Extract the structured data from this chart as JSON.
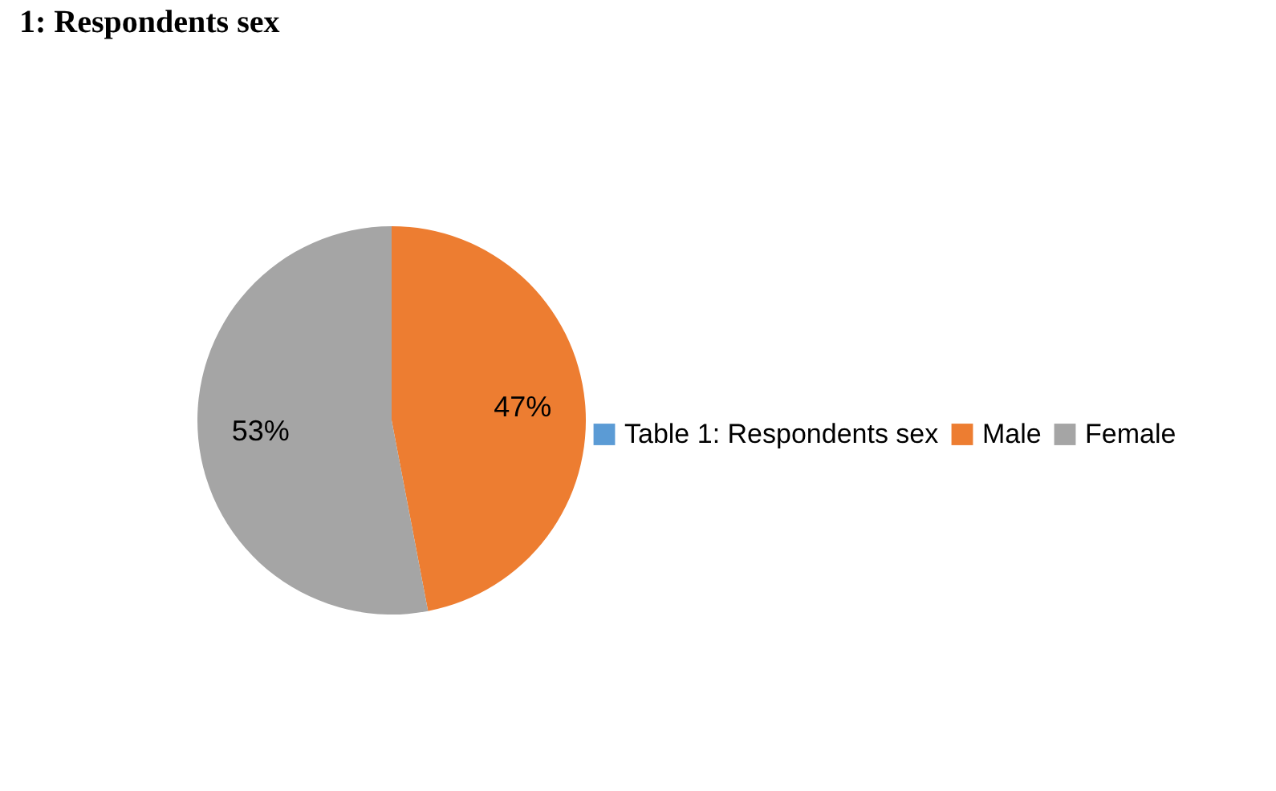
{
  "chart_data": {
    "type": "pie",
    "title": "1: Respondents sex",
    "categories": [
      "Table 1: Respondents sex",
      "Male",
      "Female"
    ],
    "values": [
      0,
      47,
      53
    ],
    "colors": [
      "#5b9bd5",
      "#ed7d31",
      "#a5a5a5"
    ],
    "value_labels": [
      null,
      "47%",
      "53%"
    ],
    "legend": "right"
  }
}
